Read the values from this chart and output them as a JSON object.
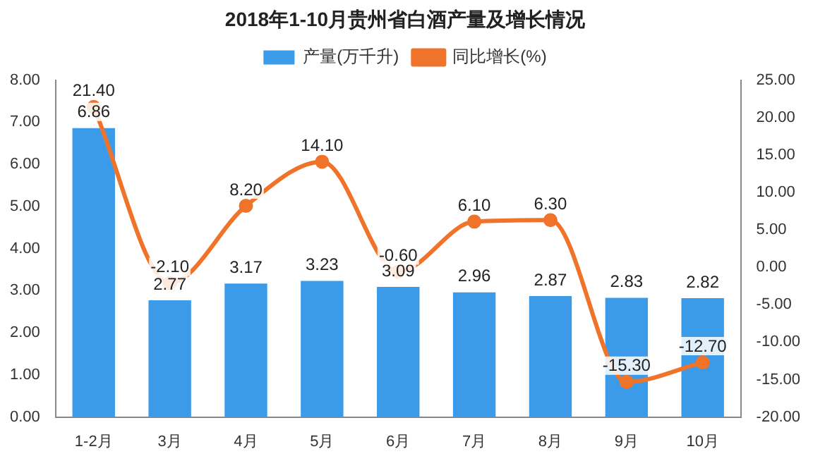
{
  "chart_data": {
    "type": "bar",
    "title": "2018年1-10月贵州省白酒产量及增长情况",
    "categories": [
      "1-2月",
      "3月",
      "4月",
      "5月",
      "6月",
      "7月",
      "8月",
      "9月",
      "10月"
    ],
    "series": [
      {
        "name": "产量(万千升)",
        "color": "#3c9be8",
        "values": [
          6.86,
          2.77,
          3.17,
          3.23,
          3.09,
          2.96,
          2.87,
          2.83,
          2.82
        ],
        "value_labels": [
          "6.86",
          "2.77",
          "3.17",
          "3.23",
          "3.09",
          "2.96",
          "2.87",
          "2.83",
          "2.82"
        ]
      },
      {
        "name": "同比增长(%)",
        "type": "line",
        "axis": "y2",
        "color": "#f0732a",
        "marker": "circle",
        "values": [
          21.4,
          -2.1,
          8.2,
          14.1,
          -0.6,
          6.1,
          6.3,
          -15.3,
          -12.7
        ],
        "value_labels": [
          "21.40",
          "-2.10",
          "8.20",
          "14.10",
          "-0.60",
          "6.10",
          "6.30",
          "-15.30",
          "-12.70"
        ]
      }
    ],
    "ylim": [
      0,
      8
    ],
    "yticks": [
      {
        "value": 0,
        "label": "0.00"
      },
      {
        "value": 1,
        "label": "1.00"
      },
      {
        "value": 2,
        "label": "2.00"
      },
      {
        "value": 3,
        "label": "3.00"
      },
      {
        "value": 4,
        "label": "4.00"
      },
      {
        "value": 5,
        "label": "5.00"
      },
      {
        "value": 6,
        "label": "6.00"
      },
      {
        "value": 7,
        "label": "7.00"
      },
      {
        "value": 8,
        "label": "8.00"
      }
    ],
    "y2lim": [
      -20,
      25
    ],
    "y2ticks": [
      {
        "value": -20,
        "label": "-20.00"
      },
      {
        "value": -15,
        "label": "-15.00"
      },
      {
        "value": -10,
        "label": "-10.00"
      },
      {
        "value": -5,
        "label": "-5.00"
      },
      {
        "value": 0,
        "label": "0.00"
      },
      {
        "value": 5,
        "label": "5.00"
      },
      {
        "value": 10,
        "label": "10.00"
      },
      {
        "value": 15,
        "label": "15.00"
      },
      {
        "value": 20,
        "label": "20.00"
      },
      {
        "value": 25,
        "label": "25.00"
      }
    ],
    "legend": "top",
    "grid": false
  }
}
